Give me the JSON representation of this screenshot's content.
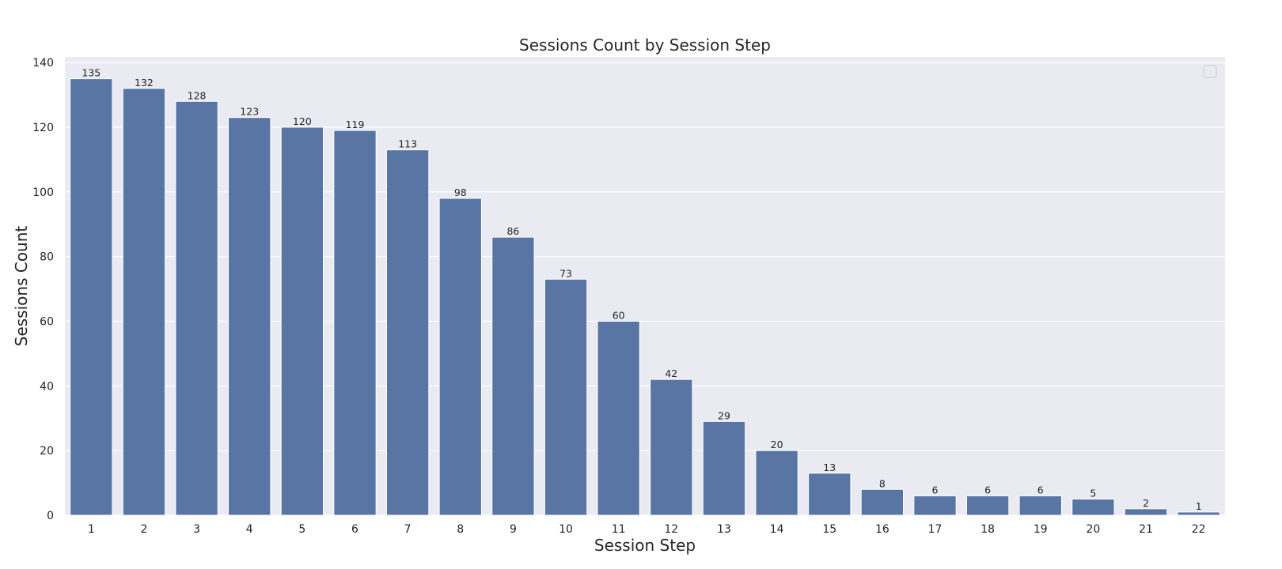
{
  "chart_data": {
    "type": "bar",
    "title": "Sessions Count by Session Step",
    "xlabel": "Session Step",
    "ylabel": "Sessions Count",
    "categories": [
      "1",
      "2",
      "3",
      "4",
      "5",
      "6",
      "7",
      "8",
      "9",
      "10",
      "11",
      "12",
      "13",
      "14",
      "15",
      "16",
      "17",
      "18",
      "19",
      "20",
      "21",
      "22"
    ],
    "values": [
      135,
      132,
      128,
      123,
      120,
      119,
      113,
      98,
      86,
      73,
      60,
      42,
      29,
      20,
      13,
      8,
      6,
      6,
      6,
      5,
      2,
      1
    ],
    "ylim": [
      0,
      141.75
    ],
    "yticks": [
      0,
      20,
      40,
      60,
      80,
      100,
      120,
      140
    ],
    "grid": true,
    "legend": "top-right, empty",
    "colors": {
      "bar": "#5875a4",
      "plot_background": "#eaeaf2",
      "grid": "#ffffff",
      "text": "#262626"
    }
  }
}
